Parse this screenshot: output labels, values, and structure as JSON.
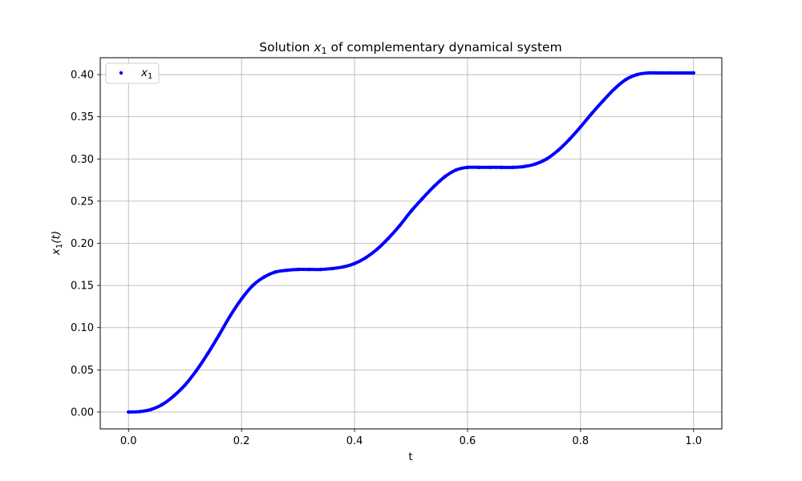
{
  "chart_data": {
    "type": "scatter",
    "title_prefix": "Solution ",
    "title_var": "x",
    "title_sub": "1",
    "title_suffix": " of complementary dynamical system",
    "xlabel": "t",
    "ylabel_var": "x",
    "ylabel_sub": "1",
    "ylabel_suffix": "(t)",
    "xlim": [
      -0.05,
      1.05
    ],
    "ylim": [
      -0.02,
      0.42
    ],
    "xticks": [
      0.0,
      0.2,
      0.4,
      0.6,
      0.8,
      1.0
    ],
    "xtick_labels": [
      "0.0",
      "0.2",
      "0.4",
      "0.6",
      "0.8",
      "1.0"
    ],
    "yticks": [
      0.0,
      0.05,
      0.1,
      0.15,
      0.2,
      0.25,
      0.3,
      0.35,
      0.4
    ],
    "ytick_labels": [
      "0.00",
      "0.05",
      "0.10",
      "0.15",
      "0.20",
      "0.25",
      "0.30",
      "0.35",
      "0.40"
    ],
    "grid": true,
    "legend": {
      "position": "top-left",
      "var": "x",
      "sub": "1"
    },
    "series": [
      {
        "name": "x1",
        "color": "#0000ff",
        "marker": "dot",
        "x": [
          0.0,
          0.02,
          0.04,
          0.06,
          0.08,
          0.1,
          0.12,
          0.14,
          0.16,
          0.18,
          0.2,
          0.22,
          0.24,
          0.26,
          0.28,
          0.3,
          0.32,
          0.34,
          0.36,
          0.38,
          0.4,
          0.42,
          0.44,
          0.46,
          0.48,
          0.5,
          0.52,
          0.54,
          0.56,
          0.58,
          0.6,
          0.62,
          0.64,
          0.66,
          0.68,
          0.7,
          0.72,
          0.74,
          0.76,
          0.78,
          0.8,
          0.82,
          0.84,
          0.86,
          0.88,
          0.9,
          0.92,
          0.94,
          0.96,
          0.98,
          1.0
        ],
        "y": [
          0.0,
          0.0005,
          0.003,
          0.009,
          0.019,
          0.032,
          0.049,
          0.069,
          0.091,
          0.114,
          0.134,
          0.15,
          0.16,
          0.166,
          0.168,
          0.169,
          0.169,
          0.169,
          0.17,
          0.172,
          0.176,
          0.183,
          0.193,
          0.206,
          0.221,
          0.238,
          0.253,
          0.267,
          0.279,
          0.287,
          0.29,
          0.29,
          0.29,
          0.29,
          0.29,
          0.291,
          0.294,
          0.3,
          0.31,
          0.323,
          0.338,
          0.354,
          0.369,
          0.383,
          0.394,
          0.4,
          0.402,
          0.402,
          0.402,
          0.402,
          0.402
        ]
      }
    ]
  }
}
